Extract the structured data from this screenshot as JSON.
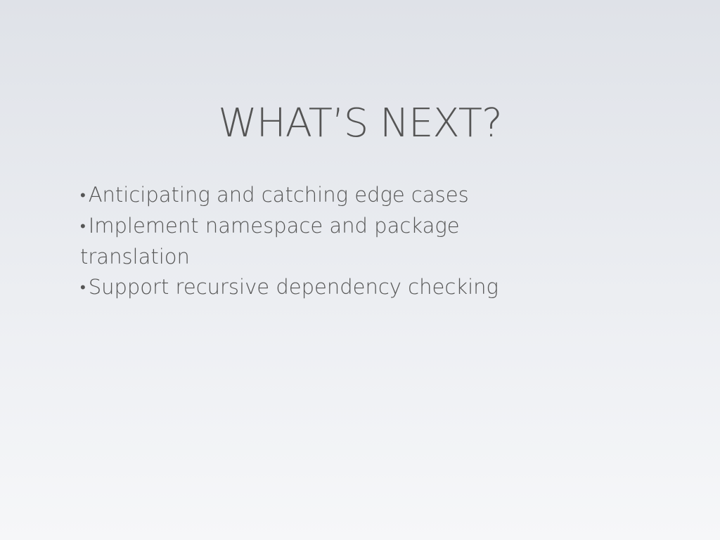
{
  "slide": {
    "title": "WHAT’S NEXT?",
    "bullets": [
      "Anticipating and catching edge cases",
      "Implement namespace and package translation",
      "Support recursive dependency checking"
    ],
    "bullet_glyph": "•"
  }
}
